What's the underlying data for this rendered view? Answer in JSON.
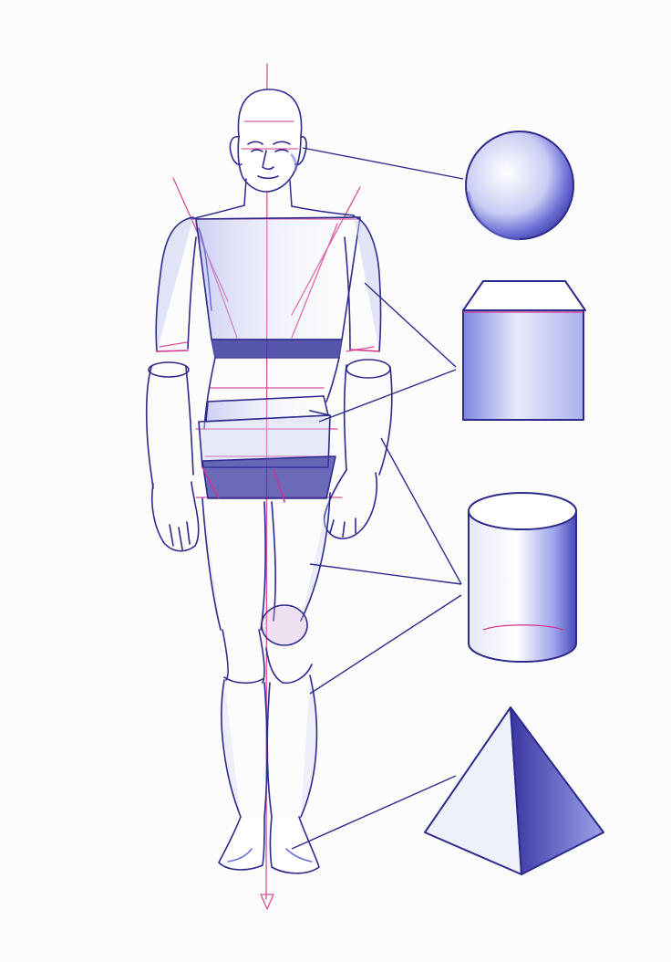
{
  "figure": {
    "subject": "anatomy-basic-forms",
    "shapes": [
      "sphere",
      "box",
      "cylinder",
      "pyramid"
    ]
  },
  "colors": {
    "paper": "#fcfcfc",
    "blue": "#2d2a8e",
    "blue_light": "#6f73d6",
    "pink": "#d2338c",
    "shade": "#7c86e0"
  }
}
